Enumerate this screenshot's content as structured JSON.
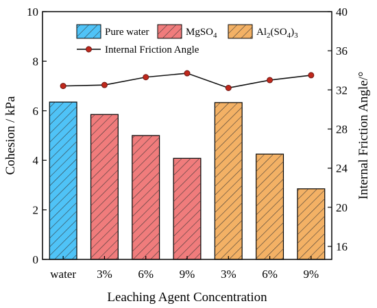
{
  "chart_data": {
    "type": "bar",
    "xlabel": "Leaching Agent Concentration",
    "ylabel": "Cohesion / kPa",
    "y2label": "Internal Friction Angle/°",
    "ylim": [
      0,
      10
    ],
    "yticks": [
      "0",
      "2",
      "4",
      "6",
      "8",
      "10"
    ],
    "y2lim": [
      14.67,
      40
    ],
    "y2ticks": [
      "16",
      "20",
      "24",
      "28",
      "32",
      "36",
      "40"
    ],
    "grid": false,
    "legend_position": "top",
    "categories": [
      "water",
      "3%",
      "6%",
      "9%",
      "3%",
      "6%",
      "9%"
    ],
    "groups": [
      {
        "name": "Pure water",
        "color": "#4fc3f7",
        "indices": [
          0
        ]
      },
      {
        "name": "MgSO",
        "sub": "4",
        "color": "#f07c7c",
        "indices": [
          1,
          2,
          3
        ]
      },
      {
        "name": "Al",
        "sub": "2",
        "mid": "(SO",
        "sub2": "4",
        "tail": ")",
        "sub3": "3",
        "color": "#f3b165",
        "indices": [
          4,
          5,
          6
        ]
      }
    ],
    "cohesion": [
      6.35,
      5.85,
      5.0,
      4.08,
      6.33,
      4.25,
      2.85
    ],
    "line_series": {
      "name": "Internal Friction Angle",
      "color": "#c0281c",
      "values": [
        32.4,
        32.5,
        33.3,
        33.7,
        32.2,
        33.0,
        33.5
      ]
    }
  }
}
